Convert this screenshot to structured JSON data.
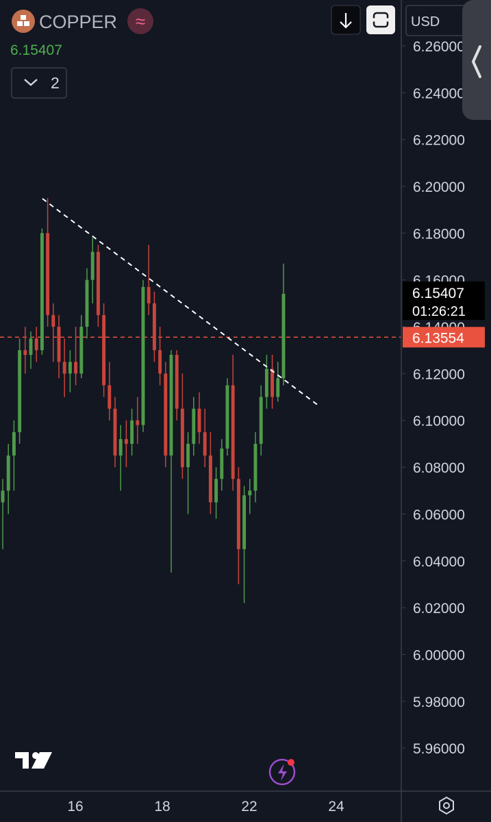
{
  "chart_data": {
    "type": "candlestick",
    "symbol": "COPPER",
    "last_price": 6.15407,
    "indicator_count": 2,
    "currency": "USD",
    "countdown": "01:26:21",
    "mark_price": 6.13554,
    "up_color": "#4f9a4a",
    "down_color": "#c9453b",
    "grid": false,
    "open": [
      6.065,
      6.07,
      6.085,
      6.095,
      6.13,
      6.128,
      6.135,
      6.13,
      6.18,
      6.145,
      6.14,
      6.125,
      6.12,
      6.125,
      6.12,
      6.14,
      6.16,
      6.172,
      6.145,
      6.115,
      6.105,
      6.085,
      6.092,
      6.09,
      6.1,
      6.098,
      6.157,
      6.15,
      6.13,
      6.12,
      6.085,
      6.128,
      6.105,
      6.08,
      6.09,
      6.105,
      6.095,
      6.085,
      6.065,
      6.075,
      6.088,
      6.115,
      6.075,
      6.045,
      6.068,
      6.07,
      6.09,
      6.11,
      6.122,
      6.11,
      6.118
    ],
    "high": [
      6.075,
      6.09,
      6.1,
      6.135,
      6.14,
      6.138,
      6.14,
      6.182,
      6.195,
      6.15,
      6.145,
      6.135,
      6.13,
      6.14,
      6.145,
      6.165,
      6.178,
      6.175,
      6.15,
      6.125,
      6.11,
      6.098,
      6.1,
      6.105,
      6.11,
      6.16,
      6.175,
      6.155,
      6.14,
      6.125,
      6.13,
      6.13,
      6.12,
      6.095,
      6.11,
      6.112,
      6.105,
      6.095,
      6.08,
      6.092,
      6.118,
      6.128,
      6.08,
      6.072,
      6.075,
      6.095,
      6.115,
      6.128,
      6.128,
      6.125,
      6.167
    ],
    "low": [
      6.045,
      6.06,
      6.07,
      6.09,
      6.12,
      6.122,
      6.125,
      6.128,
      6.14,
      6.125,
      6.118,
      6.11,
      6.112,
      6.115,
      6.118,
      6.135,
      6.15,
      6.14,
      6.11,
      6.1,
      6.08,
      6.07,
      6.08,
      6.085,
      6.09,
      6.095,
      6.145,
      6.125,
      6.115,
      6.08,
      6.035,
      6.1,
      6.075,
      6.06,
      6.085,
      6.09,
      6.08,
      6.06,
      6.058,
      6.07,
      6.085,
      6.07,
      6.03,
      6.022,
      6.06,
      6.065,
      6.085,
      6.105,
      6.105,
      6.108,
      6.115
    ],
    "close": [
      6.07,
      6.085,
      6.095,
      6.13,
      6.128,
      6.135,
      6.13,
      6.18,
      6.145,
      6.14,
      6.125,
      6.12,
      6.125,
      6.12,
      6.14,
      6.16,
      6.172,
      6.145,
      6.115,
      6.105,
      6.085,
      6.092,
      6.09,
      6.1,
      6.098,
      6.157,
      6.15,
      6.13,
      6.12,
      6.085,
      6.128,
      6.105,
      6.08,
      6.09,
      6.105,
      6.095,
      6.085,
      6.065,
      6.075,
      6.088,
      6.115,
      6.075,
      6.045,
      6.068,
      6.07,
      6.09,
      6.11,
      6.122,
      6.11,
      6.118,
      6.15407
    ],
    "xticks": [
      "16",
      "18",
      "22",
      "24"
    ],
    "ylim": [
      5.9416,
      6.2796
    ],
    "yticks": [
      {
        "value": 5.96,
        "label": "5.96000"
      },
      {
        "value": 5.98,
        "label": "5.98000"
      },
      {
        "value": 6.0,
        "label": "6.00000"
      },
      {
        "value": 6.02,
        "label": "6.02000"
      },
      {
        "value": 6.04,
        "label": "6.04000"
      },
      {
        "value": 6.06,
        "label": "6.06000"
      },
      {
        "value": 6.08,
        "label": "6.08000"
      },
      {
        "value": 6.1,
        "label": "6.10000"
      },
      {
        "value": 6.12,
        "label": "6.12000"
      },
      {
        "value": 6.14,
        "label": "6.14000"
      },
      {
        "value": 6.16,
        "label": "6.16000"
      },
      {
        "value": 6.18,
        "label": "6.18000"
      },
      {
        "value": 6.2,
        "label": "6.20000"
      },
      {
        "value": 6.22,
        "label": "6.22000"
      },
      {
        "value": 6.24,
        "label": "6.24000"
      },
      {
        "value": 6.26,
        "label": "6.26000"
      }
    ]
  }
}
